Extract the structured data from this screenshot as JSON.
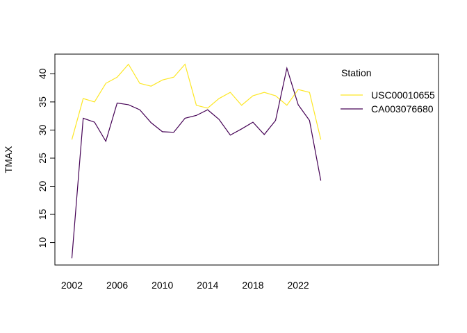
{
  "chart_data": {
    "type": "line",
    "title": "",
    "xlabel": "",
    "ylabel": "TMAX",
    "x": [
      2002,
      2003,
      2004,
      2005,
      2006,
      2007,
      2008,
      2009,
      2010,
      2011,
      2012,
      2013,
      2014,
      2015,
      2016,
      2017,
      2018,
      2019,
      2020,
      2021,
      2022,
      2023,
      2024
    ],
    "xticks": [
      2002,
      2006,
      2010,
      2014,
      2018,
      2022
    ],
    "xlim": [
      2000.5,
      2034.4
    ],
    "yticks": [
      10,
      15,
      20,
      25,
      30,
      35,
      40
    ],
    "ylim": [
      6.0,
      43.5
    ],
    "grid": false,
    "legend_title": "Station",
    "legend_placement": "top-right",
    "series": [
      {
        "name": "USC00010655",
        "color": "#FDE725",
        "values": [
          28.3,
          35.6,
          35.0,
          38.3,
          39.4,
          41.7,
          38.3,
          37.8,
          38.9,
          39.4,
          41.7,
          34.4,
          33.9,
          35.6,
          36.7,
          34.4,
          36.1,
          36.7,
          36.1,
          34.4,
          37.2,
          36.7,
          28.3
        ]
      },
      {
        "name": "CA003076680",
        "color": "#440154",
        "values": [
          7.2,
          32.1,
          31.4,
          28.0,
          34.8,
          34.5,
          33.6,
          31.3,
          29.7,
          29.6,
          32.1,
          32.6,
          33.6,
          31.9,
          29.1,
          30.2,
          31.4,
          29.2,
          31.7,
          41.0,
          34.5,
          31.7,
          21.0
        ]
      }
    ]
  }
}
